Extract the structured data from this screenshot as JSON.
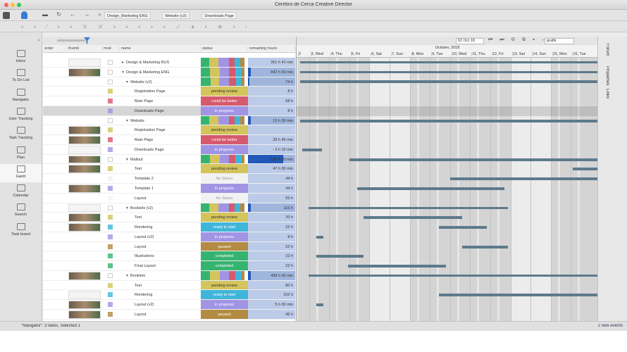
{
  "window": {
    "title": "Cerebro de Cerca  Creative Director"
  },
  "tabs": [
    "Design_Marketing ENG",
    "Website (v2)",
    "Downloads Page"
  ],
  "sidebar": [
    "Inbox",
    "To Do List",
    "Navigator",
    "User Tracking",
    "Task Tracking",
    "Plan",
    "Gantt",
    "Calendar",
    "Search",
    "Task board"
  ],
  "columns": [
    "order",
    "thumb",
    "mod",
    "name",
    "status",
    "remaining hours"
  ],
  "gantt": {
    "date": "02 Oct 18",
    "view": "grafik",
    "month": "October, 2018",
    "days": [
      "2",
      "3, Wed",
      "4, Thu",
      "5, Fri",
      "6, Sat",
      "7, Sun",
      "8, Mon",
      "9, Tue",
      "10, Wed",
      "11, Thu",
      "12, Fri",
      "13, Sat",
      "14, Sun",
      "15, Mon",
      "16, Tue"
    ]
  },
  "tree": [
    {
      "name": "Design & Marketing RUS",
      "remaining": "261 h 41 min"
    },
    {
      "name": "Design & Marketing ENG",
      "remaining": "842 h 30 min",
      "children": [
        {
          "name": "Website (v2)",
          "remaining": "74 h",
          "children": [
            {
              "name": "Registration Page",
              "status": "pending review",
              "remaining": "8 h"
            },
            {
              "name": "Main Page",
              "status": "could be better",
              "remaining": "58 h"
            },
            {
              "name": "Downloads Page",
              "status": "in progress",
              "remaining": "8 h"
            }
          ]
        },
        {
          "name": "Website",
          "remaining": "13 h 30 min",
          "children": [
            {
              "name": "Registration Page",
              "status": "pending review"
            },
            {
              "name": "Main Page",
              "status": "could be better",
              "remaining": "33 h 45 min"
            },
            {
              "name": "Downloads Page",
              "status": "in progress",
              "remaining": "- 2 h 15 min"
            }
          ]
        },
        {
          "name": "Mailout",
          "remaining": "190 h 30 min",
          "children": [
            {
              "name": "Text",
              "status": "pending review",
              "remaining": "47 h 30 min"
            },
            {
              "name": "Template 2",
              "status": "No Status",
              "remaining": "44 h"
            },
            {
              "name": "Template 1",
              "status": "in progress",
              "remaining": "44 h"
            },
            {
              "name": "Layout",
              "status": "No Status",
              "remaining": "55 h"
            }
          ]
        },
        {
          "name": "Booklets (v2)",
          "remaining": "116 h",
          "children": [
            {
              "name": "Text",
              "status": "pending review",
              "remaining": "20 h"
            },
            {
              "name": "Rendering",
              "status": "ready to start",
              "remaining": "22 h"
            },
            {
              "name": "Layout (v2)",
              "status": "in progress",
              "remaining": "8 h"
            },
            {
              "name": "Layout",
              "status": "paused",
              "remaining": "22 h"
            },
            {
              "name": "Illustrations",
              "status": "completed",
              "remaining": "22 h"
            },
            {
              "name": "Final Layout",
              "status": "completed",
              "remaining": "22 h"
            }
          ]
        },
        {
          "name": "Booklets",
          "remaining": "438 h 30 min",
          "children": [
            {
              "name": "Text",
              "status": "pending review",
              "remaining": "80 h"
            },
            {
              "name": "Rendering",
              "status": "ready to start",
              "remaining": "102 h"
            },
            {
              "name": "Layout (v2)",
              "status": "in progress",
              "remaining": "5 h 30 min"
            },
            {
              "name": "Layout",
              "status": "paused",
              "remaining": "46 h"
            }
          ]
        }
      ]
    }
  ],
  "statusbar": {
    "left": "\"Navigator\": 3 tasks, Selected 1",
    "right": "2 new events"
  },
  "side_tabs": [
    "Forum",
    "Properties",
    "Links"
  ]
}
